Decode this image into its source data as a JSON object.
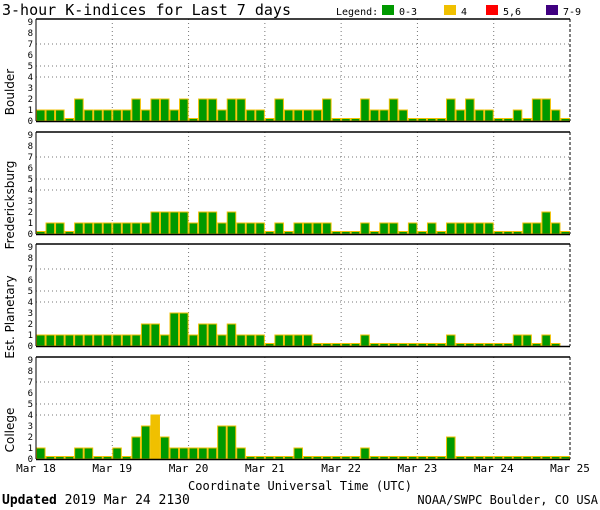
{
  "chart_data": {
    "type": "bar",
    "title": "3-hour K-indices for Last 7 days",
    "legend": {
      "label": "Legend:",
      "placement": "top-right",
      "entries": [
        {
          "label": "0-3",
          "color": "#009900"
        },
        {
          "label": "4",
          "color": "#f0c000"
        },
        {
          "label": "5,6",
          "color": "#ff0000"
        },
        {
          "label": "7-9",
          "color": "#400080"
        }
      ]
    },
    "xlabel": "Coordinate Universal Time (UTC)",
    "x_ticks": [
      "Mar 18",
      "Mar 19",
      "Mar 20",
      "Mar 21",
      "Mar 22",
      "Mar 23",
      "Mar 24",
      "Mar 25"
    ],
    "y_ticks": [
      "0",
      "1",
      "2",
      "3",
      "4",
      "5",
      "6",
      "7",
      "8",
      "9"
    ],
    "ylim": [
      0,
      9
    ],
    "grid_y": [
      4,
      5,
      7
    ],
    "bars_per_day": 8,
    "series": [
      {
        "name": "Boulder",
        "values": [
          1,
          1,
          1,
          0,
          2,
          1,
          1,
          1,
          1,
          1,
          2,
          1,
          2,
          2,
          1,
          2,
          0,
          2,
          2,
          1,
          2,
          2,
          1,
          1,
          0,
          2,
          1,
          1,
          1,
          1,
          2,
          0,
          0,
          0,
          2,
          1,
          1,
          2,
          1,
          0,
          0,
          0,
          0,
          2,
          1,
          2,
          1,
          1,
          0,
          0,
          1,
          0,
          2,
          2,
          1,
          0
        ]
      },
      {
        "name": "Fredericksburg",
        "values": [
          0,
          1,
          1,
          0,
          1,
          1,
          1,
          1,
          1,
          1,
          1,
          1,
          2,
          2,
          2,
          2,
          1,
          2,
          2,
          1,
          2,
          1,
          1,
          1,
          0,
          1,
          0,
          1,
          1,
          1,
          1,
          0,
          0,
          0,
          1,
          0,
          1,
          1,
          0,
          1,
          0,
          1,
          0,
          1,
          1,
          1,
          1,
          1,
          0,
          0,
          0,
          1,
          1,
          2,
          1,
          0
        ]
      },
      {
        "name": "Est. Planetary",
        "values": [
          1,
          1,
          1,
          1,
          1,
          1,
          1,
          1,
          1,
          1,
          1,
          2,
          2,
          1,
          3,
          3,
          1,
          2,
          2,
          1,
          2,
          1,
          1,
          1,
          0,
          1,
          1,
          1,
          1,
          0,
          0,
          0,
          0,
          0,
          1,
          0,
          0,
          0,
          0,
          0,
          0,
          0,
          0,
          1,
          0,
          0,
          0,
          0,
          0,
          0,
          1,
          1,
          0,
          1,
          0,
          null
        ]
      },
      {
        "name": "College",
        "values": [
          1,
          0,
          0,
          0,
          1,
          1,
          0,
          0,
          1,
          0,
          2,
          3,
          4,
          2,
          1,
          1,
          1,
          1,
          1,
          3,
          3,
          1,
          0,
          0,
          0,
          0,
          0,
          1,
          0,
          0,
          0,
          0,
          0,
          0,
          1,
          0,
          0,
          0,
          0,
          0,
          0,
          0,
          0,
          2,
          0,
          0,
          0,
          0,
          0,
          0,
          0,
          0,
          0,
          0,
          0,
          0
        ]
      }
    ]
  },
  "footer": {
    "updated_label": "Updated",
    "updated_value": "2019 Mar 24 2130",
    "source": "NOAA/SWPC Boulder, CO USA"
  }
}
